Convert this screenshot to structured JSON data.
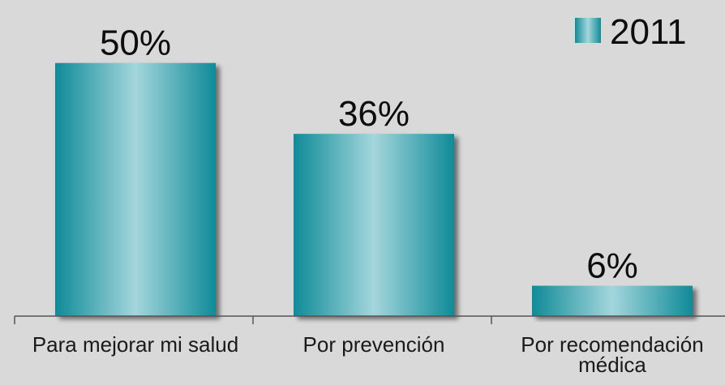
{
  "chart_data": {
    "type": "bar",
    "categories": [
      "Para mejorar mi salud",
      "Por prevención",
      "Por recomendación médica"
    ],
    "category_lines": [
      [
        "Para mejorar mi salud"
      ],
      [
        "Por prevención"
      ],
      [
        "Por recomendación",
        "médica"
      ]
    ],
    "series": [
      {
        "name": "2011",
        "values": [
          50,
          36,
          6
        ],
        "data_labels": [
          "50%",
          "36%",
          "6%"
        ]
      }
    ],
    "ylim": [
      0,
      57
    ],
    "grid": false,
    "legend_position": "top-right",
    "colors": {
      "bar_edge": "#0f8b98",
      "bar_center": "#a4d6dc",
      "axis": "#555555",
      "background": "#d9d9d9"
    }
  }
}
